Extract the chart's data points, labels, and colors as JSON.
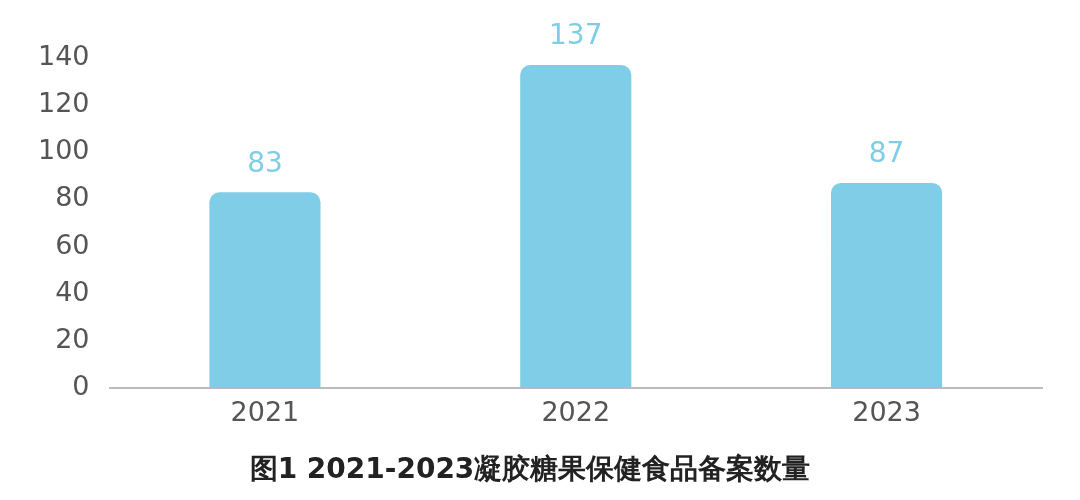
{
  "chart_data": {
    "type": "bar",
    "title": "图1 2021-2023凝胶糖果保健食品备案数量",
    "categories": [
      "2021",
      "2022",
      "2023"
    ],
    "values": [
      83,
      137,
      87
    ],
    "color": "#7fcde6",
    "ylim": [
      0,
      140
    ],
    "yticks": [
      0,
      20,
      40,
      60,
      80,
      100,
      120,
      140
    ],
    "grid": false,
    "legend": false,
    "data_labels": true
  }
}
